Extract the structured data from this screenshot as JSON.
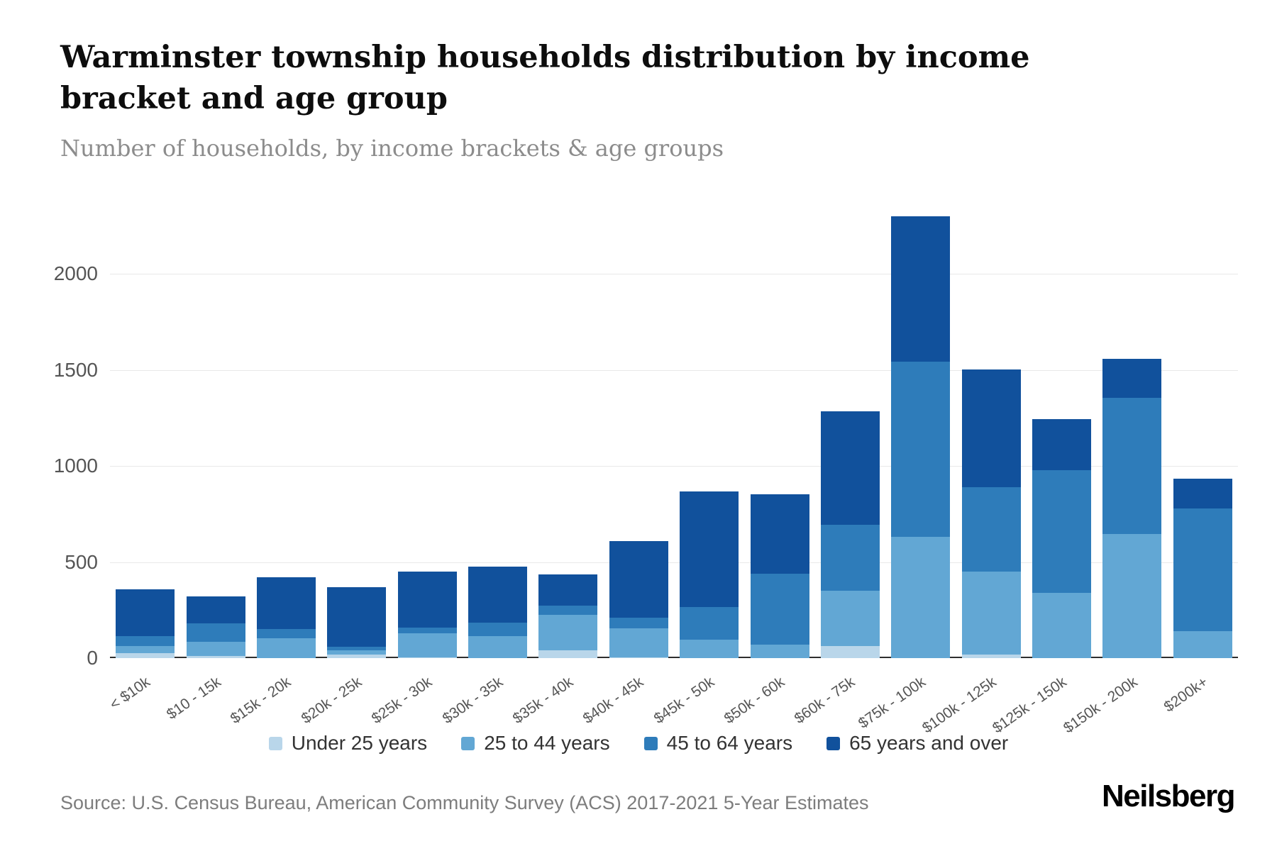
{
  "header": {
    "title": "Warminster township households distribution by income bracket and age group",
    "subtitle": "Number of households, by income brackets & age groups"
  },
  "chart_data": {
    "type": "bar",
    "stacked": true,
    "title": "Warminster township households distribution by income bracket and age group",
    "subtitle": "Number of households, by income brackets & age groups",
    "xlabel": "",
    "ylabel": "Number of households",
    "ylim": [
      0,
      2400
    ],
    "yticks": [
      0,
      500,
      1000,
      1500,
      2000
    ],
    "grid": true,
    "legend_position": "bottom",
    "categories": [
      "< $10k",
      "$10 - 15k",
      "$15k - 20k",
      "$20k - 25k",
      "$25k - 30k",
      "$30k - 35k",
      "$35k - 40k",
      "$40k - 45k",
      "$45k - 50k",
      "$50k - 60k",
      "$60k - 75k",
      "$75k - 100k",
      "$100k - 125k",
      "$125k - 150k",
      "$150k - 200k",
      "$200k+"
    ],
    "series": [
      {
        "name": "Under 25 years",
        "color": "#b9d6ea",
        "values": [
          25,
          10,
          0,
          20,
          5,
          0,
          40,
          5,
          0,
          0,
          65,
          0,
          20,
          0,
          0,
          0
        ]
      },
      {
        "name": "25 to 44 years",
        "color": "#62a7d4",
        "values": [
          40,
          75,
          105,
          20,
          125,
          115,
          185,
          150,
          95,
          70,
          285,
          630,
          430,
          340,
          645,
          140
        ]
      },
      {
        "name": "45 to 64 years",
        "color": "#2e7cba",
        "values": [
          50,
          95,
          45,
          20,
          30,
          70,
          50,
          55,
          170,
          370,
          345,
          915,
          440,
          640,
          710,
          640
        ]
      },
      {
        "name": "65 years and over",
        "color": "#11519c",
        "values": [
          245,
          140,
          270,
          310,
          290,
          290,
          160,
          400,
          605,
          415,
          590,
          755,
          615,
          265,
          205,
          155
        ]
      }
    ]
  },
  "footer": {
    "source": "Source: U.S. Census Bureau, American Community Survey (ACS) 2017-2021 5-Year Estimates",
    "brand": "Neilsberg"
  }
}
